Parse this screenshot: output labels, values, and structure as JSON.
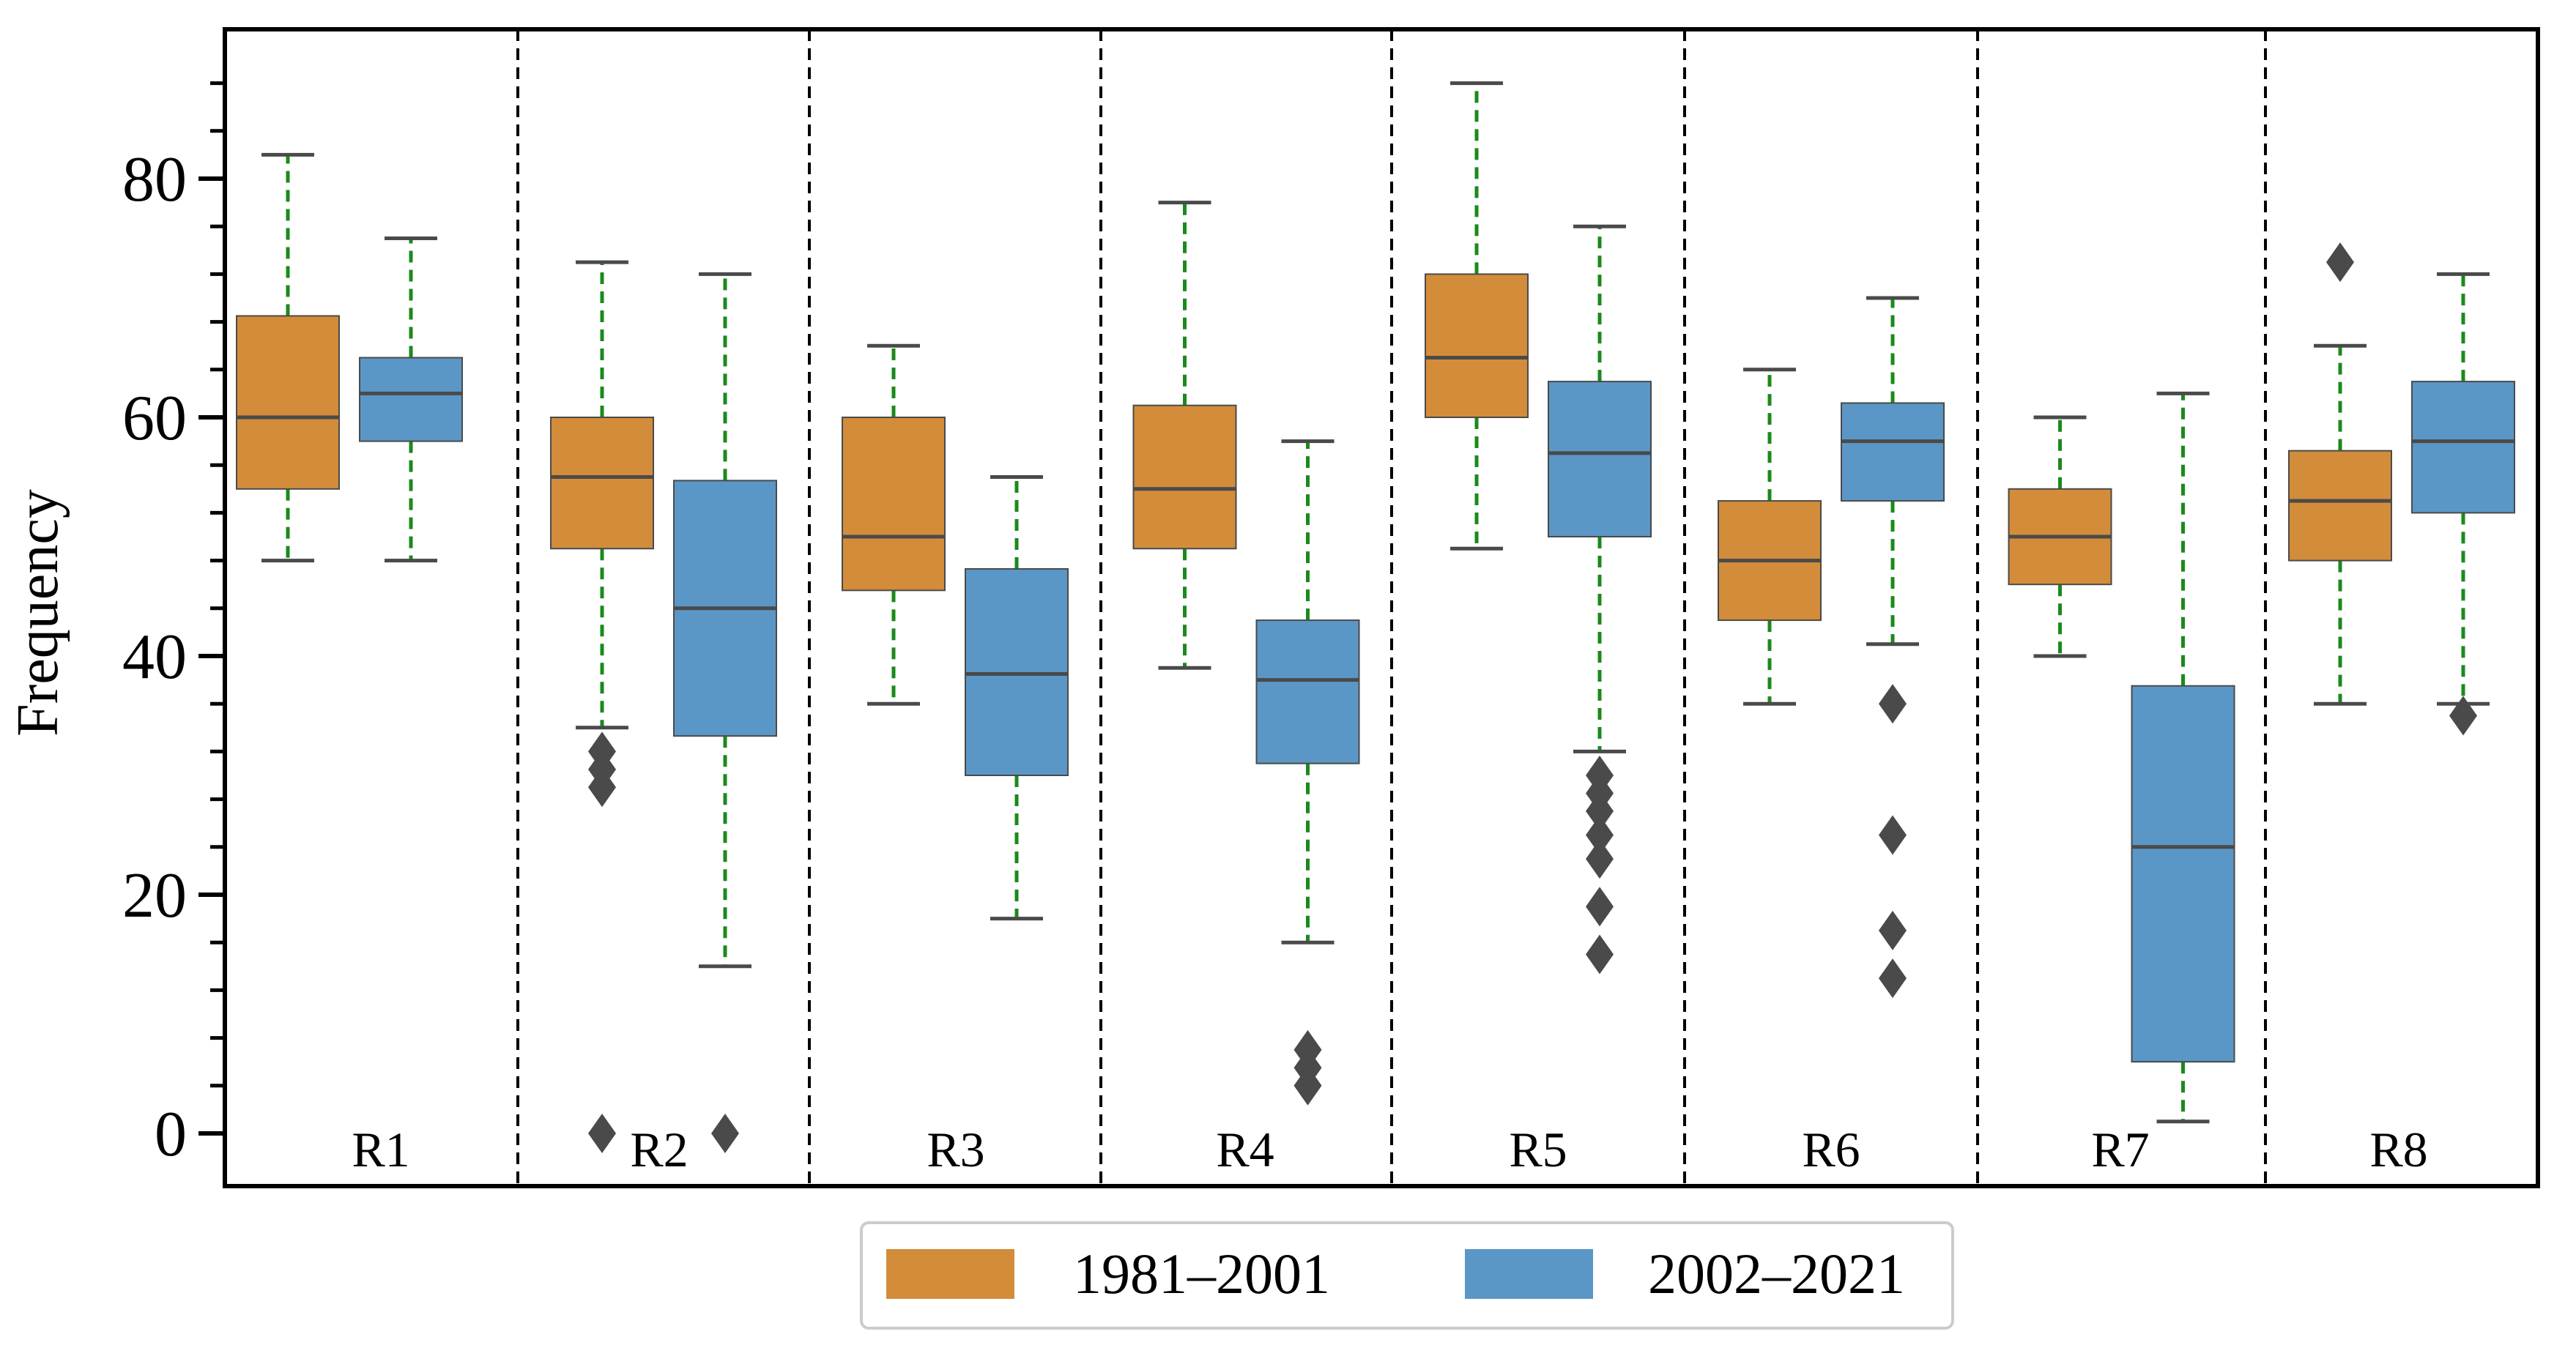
{
  "chart_data": {
    "type": "boxplot",
    "title": "",
    "xlabel": "",
    "ylabel": "Frequency",
    "ylim": [
      -4,
      92
    ],
    "yticks": [
      0,
      20,
      40,
      60,
      80
    ],
    "grid": false,
    "legend_position": "bottom-center",
    "categories": [
      "R1",
      "R2",
      "R3",
      "R4",
      "R5",
      "R6",
      "R7",
      "R8"
    ],
    "series": [
      {
        "name": "1981–2001",
        "color": "#d38c3a",
        "boxes": [
          {
            "region": "R1",
            "min": 48,
            "q1": 54,
            "median": 60,
            "q3": 68.5,
            "max": 82,
            "outliers": []
          },
          {
            "region": "R2",
            "min": 34,
            "q1": 49,
            "median": 55,
            "q3": 60,
            "max": 73,
            "outliers": [
              32,
              30.5,
              29,
              0
            ]
          },
          {
            "region": "R3",
            "min": 36,
            "q1": 45.5,
            "median": 50,
            "q3": 60,
            "max": 66,
            "outliers": []
          },
          {
            "region": "R4",
            "min": 39,
            "q1": 49,
            "median": 54,
            "q3": 61,
            "max": 78,
            "outliers": []
          },
          {
            "region": "R5",
            "min": 49,
            "q1": 60,
            "median": 65,
            "q3": 72,
            "max": 88,
            "outliers": []
          },
          {
            "region": "R6",
            "min": 36,
            "q1": 43,
            "median": 48,
            "q3": 53,
            "max": 64,
            "outliers": []
          },
          {
            "region": "R7",
            "min": 40,
            "q1": 46,
            "median": 50,
            "q3": 54,
            "max": 60,
            "outliers": []
          },
          {
            "region": "R8",
            "min": 36,
            "q1": 48,
            "median": 53,
            "q3": 57.2,
            "max": 66,
            "outliers": [
              73
            ]
          }
        ]
      },
      {
        "name": "2002–2021",
        "color": "#5b97c6",
        "boxes": [
          {
            "region": "R1",
            "min": 48,
            "q1": 58,
            "median": 62,
            "q3": 65,
            "max": 75,
            "outliers": []
          },
          {
            "region": "R2",
            "min": 14,
            "q1": 33.3,
            "median": 44,
            "q3": 54.7,
            "max": 72,
            "outliers": [
              0
            ]
          },
          {
            "region": "R3",
            "min": 18,
            "q1": 30,
            "median": 38.5,
            "q3": 47.3,
            "max": 55,
            "outliers": []
          },
          {
            "region": "R4",
            "min": 16,
            "q1": 31,
            "median": 38,
            "q3": 43,
            "max": 58,
            "outliers": [
              7,
              5.5,
              4
            ]
          },
          {
            "region": "R5",
            "min": 32,
            "q1": 50,
            "median": 57,
            "q3": 63,
            "max": 76,
            "outliers": [
              30,
              28.5,
              27,
              25,
              23,
              19,
              15
            ]
          },
          {
            "region": "R6",
            "min": 41,
            "q1": 53,
            "median": 58,
            "q3": 61.2,
            "max": 70,
            "outliers": [
              36,
              25,
              17,
              13
            ]
          },
          {
            "region": "R7",
            "min": 1,
            "q1": 6,
            "median": 24,
            "q3": 37.5,
            "max": 62,
            "outliers": []
          },
          {
            "region": "R8",
            "min": 36,
            "q1": 52,
            "median": 58,
            "q3": 63,
            "max": 72,
            "outliers": [
              35
            ]
          }
        ]
      }
    ],
    "whisker_color": "#1a8a1a",
    "median_color": "#4a4a4a",
    "outlier_color": "#4a4a4a"
  }
}
